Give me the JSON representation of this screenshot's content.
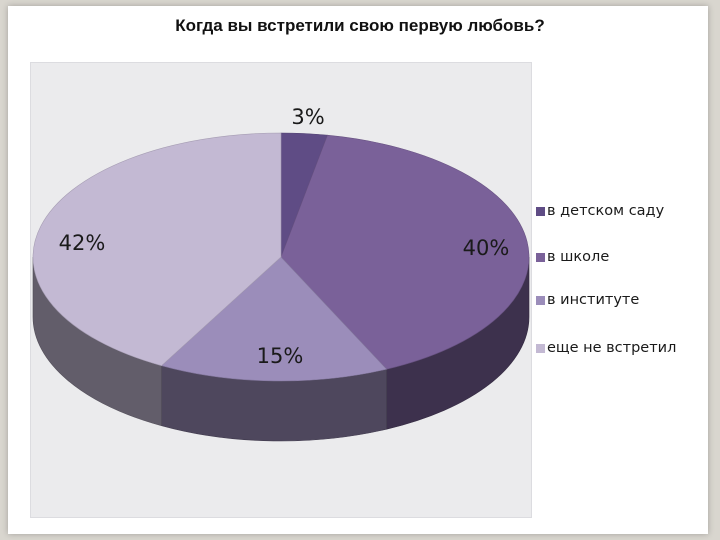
{
  "chart_data": {
    "type": "pie",
    "title": "Когда вы встретили свою первую любовь?",
    "categories": [
      "в детском саду",
      "в школе",
      "в институте",
      "еще не встретил"
    ],
    "values": [
      3,
      40,
      15,
      42
    ],
    "labels": [
      "3%",
      "40%",
      "15%",
      "42%"
    ],
    "colors": [
      "#5f4c85",
      "#7a6199",
      "#9b8dba",
      "#c3b9d3"
    ],
    "legend_position": "right",
    "three_d": true
  }
}
